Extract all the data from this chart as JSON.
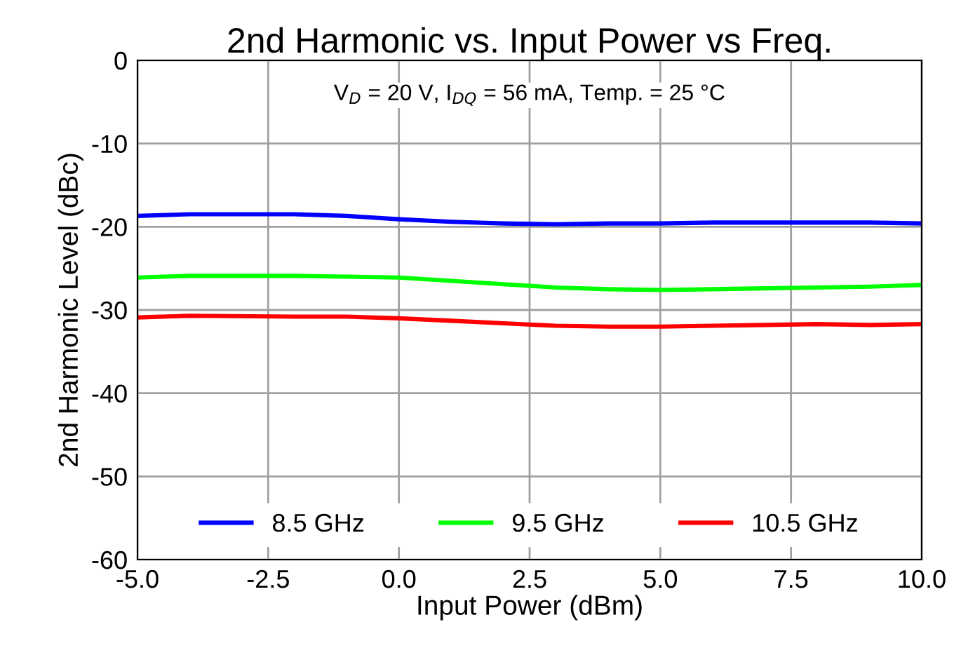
{
  "chart_data": {
    "type": "line",
    "title": "2nd Harmonic vs. Input Power vs Freq.",
    "xlabel": "Input Power (dBm)",
    "ylabel": "2nd Harmonic Level (dBc)",
    "annotations": [
      "V$_{D}$ = 20 V, I$_{DQ}$ = 56 mA, Temp. = 25 °C"
    ],
    "x": [
      -5,
      -4,
      -2,
      -1,
      0,
      1,
      2,
      3,
      4,
      5,
      6,
      7,
      8,
      9,
      10
    ],
    "series": [
      {
        "name": "8.5 GHz",
        "color": "#0000ff",
        "values": [
          -18.7,
          -18.5,
          -18.5,
          -18.7,
          -19.1,
          -19.4,
          -19.6,
          -19.7,
          -19.6,
          -19.6,
          -19.5,
          -19.5,
          -19.5,
          -19.5,
          -19.6
        ]
      },
      {
        "name": "9.5 GHz",
        "color": "#00ff00",
        "values": [
          -26.1,
          -25.9,
          -25.9,
          -26.0,
          -26.1,
          -26.5,
          -26.9,
          -27.3,
          -27.5,
          -27.6,
          -27.5,
          -27.4,
          -27.3,
          -27.2,
          -27.0
        ]
      },
      {
        "name": "10.5 GHz",
        "color": "#ff0000",
        "values": [
          -30.9,
          -30.7,
          -30.8,
          -30.8,
          -31.0,
          -31.3,
          -31.6,
          -31.9,
          -32.0,
          -32.0,
          -31.9,
          -31.8,
          -31.7,
          -31.8,
          -31.7
        ]
      }
    ],
    "xlim": [
      -5,
      10
    ],
    "ylim": [
      -60,
      0
    ],
    "xticks": [
      {
        "value": -5,
        "label": "-5.0"
      },
      {
        "value": -2.5,
        "label": "-2.5"
      },
      {
        "value": 0,
        "label": "0.0"
      },
      {
        "value": 2.5,
        "label": "2.5"
      },
      {
        "value": 5,
        "label": "5.0"
      },
      {
        "value": 7.5,
        "label": "7.5"
      },
      {
        "value": 10,
        "label": "10.0"
      }
    ],
    "yticks": [
      -60,
      -50,
      -40,
      -30,
      -20,
      -10,
      0
    ],
    "grid": true,
    "legend": "bottom",
    "marker": "none",
    "line_style": "solid"
  }
}
